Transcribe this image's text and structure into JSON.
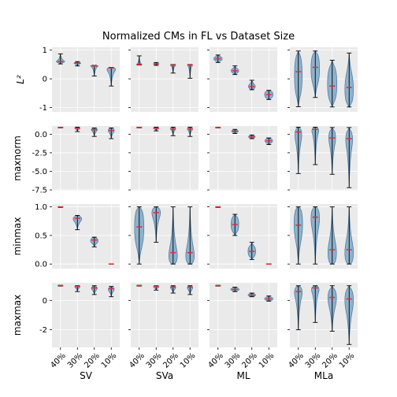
{
  "chart_data": {
    "type": "violin",
    "title": "Normalized CMs in FL vs Dataset Size",
    "columns": [
      "SV",
      "SVa",
      "ML",
      "MLa"
    ],
    "rows": [
      "L²",
      "maxnorm",
      "minmax",
      "maxmax"
    ],
    "categories": [
      "40%",
      "30%",
      "20%",
      "10%"
    ],
    "row_axes": [
      {
        "ylim": [
          -1.15,
          1.1
        ],
        "ticks": [
          1,
          0,
          -1
        ],
        "tick_labels": [
          "1",
          "0",
          "-1"
        ],
        "ylabel": "L²"
      },
      {
        "ylim": [
          -7.6,
          1.1
        ],
        "ticks": [
          0,
          -2.5,
          -5,
          -7.5
        ],
        "tick_labels": [
          "0.0",
          "-2.5",
          "-5.0",
          "-7.5"
        ],
        "ylabel": "maxnorm"
      },
      {
        "ylim": [
          -0.08,
          1.05
        ],
        "ticks": [
          1,
          0.5,
          0
        ],
        "tick_labels": [
          "1.0",
          "0.5",
          "0.0"
        ],
        "ylabel": "minmax"
      },
      {
        "ylim": [
          -3.2,
          1.2
        ],
        "ticks": [
          0,
          -2
        ],
        "tick_labels": [
          "0",
          "-2"
        ],
        "ylabel": "maxmax"
      }
    ],
    "panels": [
      [
        {
          "column": "SV",
          "violins": [
            {
              "median": 0.6,
              "min": 0.52,
              "max": 0.87,
              "lo": 0.57,
              "hi": 0.63,
              "width": 0.5
            },
            {
              "median": 0.55,
              "min": 0.45,
              "max": 0.6,
              "lo": 0.52,
              "hi": 0.57,
              "width": 0.4
            },
            {
              "median": 0.45,
              "min": 0.1,
              "max": 0.47,
              "lo": 0.43,
              "hi": 0.47,
              "width": 0.45
            },
            {
              "median": 0.38,
              "min": -0.25,
              "max": 0.4,
              "lo": 0.25,
              "hi": 0.4,
              "width": 0.5
            }
          ]
        },
        {
          "column": "SVa",
          "violins": [
            {
              "median": 0.5,
              "min": 0.48,
              "max": 0.8,
              "lo": 0.49,
              "hi": 0.51,
              "width": 0.3
            },
            {
              "median": 0.52,
              "min": 0.47,
              "max": 0.57,
              "lo": 0.5,
              "hi": 0.54,
              "width": 0.3
            },
            {
              "median": 0.48,
              "min": 0.2,
              "max": 0.5,
              "lo": 0.46,
              "hi": 0.5,
              "width": 0.3
            },
            {
              "median": 0.48,
              "min": 0.02,
              "max": 0.5,
              "lo": 0.46,
              "hi": 0.5,
              "width": 0.3
            }
          ]
        },
        {
          "column": "ML",
          "violins": [
            {
              "median": 0.7,
              "min": 0.57,
              "max": 0.83,
              "lo": 0.62,
              "hi": 0.78,
              "width": 0.5
            },
            {
              "median": 0.28,
              "min": 0.15,
              "max": 0.45,
              "lo": 0.2,
              "hi": 0.36,
              "width": 0.45
            },
            {
              "median": -0.27,
              "min": -0.38,
              "max": -0.05,
              "lo": -0.36,
              "hi": -0.18,
              "width": 0.4
            },
            {
              "median": -0.55,
              "min": -0.72,
              "max": -0.4,
              "lo": -0.68,
              "hi": -0.42,
              "width": 0.5
            }
          ]
        },
        {
          "column": "MLa",
          "violins": [
            {
              "median": 0.25,
              "min": -0.97,
              "max": 0.97,
              "lo": -0.6,
              "hi": 0.85,
              "width": 0.45
            },
            {
              "median": 0.4,
              "min": -0.65,
              "max": 0.97,
              "lo": -0.2,
              "hi": 0.9,
              "width": 0.5
            },
            {
              "median": -0.25,
              "min": -0.98,
              "max": 0.65,
              "lo": -0.8,
              "hi": 0.45,
              "width": 0.55
            },
            {
              "median": -0.3,
              "min": -0.98,
              "max": 0.9,
              "lo": -0.9,
              "hi": 0.2,
              "width": 0.5
            }
          ]
        }
      ],
      [
        {
          "column": "SV",
          "violins": [
            {
              "median": 0.9,
              "min": 0.85,
              "max": 0.95,
              "lo": 0.88,
              "hi": 0.93,
              "width": 0.3
            },
            {
              "median": 0.8,
              "min": 0.35,
              "max": 0.95,
              "lo": 0.7,
              "hi": 0.9,
              "width": 0.3
            },
            {
              "median": 0.6,
              "min": -0.3,
              "max": 0.85,
              "lo": 0.4,
              "hi": 0.8,
              "width": 0.35
            },
            {
              "median": 0.5,
              "min": -0.6,
              "max": 0.85,
              "lo": 0.2,
              "hi": 0.8,
              "width": 0.35
            }
          ]
        },
        {
          "column": "SVa",
          "violins": [
            {
              "median": 0.9,
              "min": 0.85,
              "max": 0.95,
              "lo": 0.88,
              "hi": 0.93,
              "width": 0.3
            },
            {
              "median": 0.8,
              "min": 0.45,
              "max": 0.95,
              "lo": 0.7,
              "hi": 0.9,
              "width": 0.3
            },
            {
              "median": 0.7,
              "min": -0.2,
              "max": 0.95,
              "lo": 0.55,
              "hi": 0.9,
              "width": 0.3
            },
            {
              "median": 0.7,
              "min": -0.3,
              "max": 0.95,
              "lo": 0.5,
              "hi": 0.9,
              "width": 0.3
            }
          ]
        },
        {
          "column": "ML",
          "violins": [
            {
              "median": 0.9,
              "min": 0.85,
              "max": 0.95,
              "lo": 0.88,
              "hi": 0.93,
              "width": 0.3
            },
            {
              "median": 0.4,
              "min": 0.1,
              "max": 0.65,
              "lo": 0.25,
              "hi": 0.55,
              "width": 0.4
            },
            {
              "median": -0.35,
              "min": -0.6,
              "max": -0.1,
              "lo": -0.5,
              "hi": -0.2,
              "width": 0.4
            },
            {
              "median": -0.9,
              "min": -1.4,
              "max": -0.5,
              "lo": -1.2,
              "hi": -0.6,
              "width": 0.45
            }
          ]
        },
        {
          "column": "MLa",
          "violins": [
            {
              "median": 0.3,
              "min": -5.3,
              "max": 0.95,
              "lo": -1.2,
              "hi": 0.9,
              "width": 0.4
            },
            {
              "median": 0.65,
              "min": -4.1,
              "max": 0.95,
              "lo": 0.0,
              "hi": 0.92,
              "width": 0.4
            },
            {
              "median": -0.5,
              "min": -5.4,
              "max": 0.9,
              "lo": -1.6,
              "hi": 0.6,
              "width": 0.4
            },
            {
              "median": -0.6,
              "min": -7.2,
              "max": 0.9,
              "lo": -2.0,
              "hi": 0.5,
              "width": 0.4
            }
          ]
        }
      ],
      [
        {
          "column": "SV",
          "violins": [
            {
              "median": 1.0,
              "min": 0.99,
              "max": 1.0,
              "lo": 0.99,
              "hi": 1.0,
              "width": 0.3
            },
            {
              "median": 0.8,
              "min": 0.6,
              "max": 0.85,
              "lo": 0.74,
              "hi": 0.84,
              "width": 0.5
            },
            {
              "median": 0.42,
              "min": 0.3,
              "max": 0.47,
              "lo": 0.36,
              "hi": 0.46,
              "width": 0.45
            },
            {
              "median": 0.0,
              "min": 0.0,
              "max": 0.0,
              "lo": 0.0,
              "hi": 0.0,
              "width": 0.2
            }
          ]
        },
        {
          "column": "SVa",
          "violins": [
            {
              "median": 0.65,
              "min": 0.0,
              "max": 1.0,
              "lo": 0.3,
              "hi": 0.98,
              "width": 0.55
            },
            {
              "median": 0.9,
              "min": 0.38,
              "max": 1.0,
              "lo": 0.8,
              "hi": 0.99,
              "width": 0.5
            },
            {
              "median": 0.2,
              "min": 0.0,
              "max": 1.0,
              "lo": 0.0,
              "hi": 0.3,
              "width": 0.5
            },
            {
              "median": 0.2,
              "min": 0.0,
              "max": 1.0,
              "lo": 0.0,
              "hi": 0.3,
              "width": 0.5
            }
          ]
        },
        {
          "column": "ML",
          "violins": [
            {
              "median": 1.0,
              "min": 0.99,
              "max": 1.0,
              "lo": 0.99,
              "hi": 1.0,
              "width": 0.3
            },
            {
              "median": 0.69,
              "min": 0.5,
              "max": 0.87,
              "lo": 0.55,
              "hi": 0.84,
              "width": 0.45
            },
            {
              "median": 0.22,
              "min": 0.08,
              "max": 0.38,
              "lo": 0.12,
              "hi": 0.32,
              "width": 0.45
            },
            {
              "median": 0.0,
              "min": 0.0,
              "max": 0.0,
              "lo": 0.0,
              "hi": 0.0,
              "width": 0.2
            }
          ]
        },
        {
          "column": "MLa",
          "violins": [
            {
              "median": 0.68,
              "min": 0.0,
              "max": 1.0,
              "lo": 0.4,
              "hi": 0.99,
              "width": 0.5
            },
            {
              "median": 0.82,
              "min": 0.0,
              "max": 1.0,
              "lo": 0.6,
              "hi": 0.99,
              "width": 0.5
            },
            {
              "median": 0.25,
              "min": 0.0,
              "max": 1.0,
              "lo": 0.0,
              "hi": 0.4,
              "width": 0.5
            },
            {
              "median": 0.25,
              "min": 0.0,
              "max": 1.0,
              "lo": 0.0,
              "hi": 0.4,
              "width": 0.5
            }
          ]
        }
      ],
      [
        {
          "column": "SV",
          "violins": [
            {
              "median": 1.0,
              "min": 0.97,
              "max": 1.03,
              "lo": 0.98,
              "hi": 1.02,
              "width": 0.3
            },
            {
              "median": 0.95,
              "min": 0.6,
              "max": 1.0,
              "lo": 0.85,
              "hi": 1.0,
              "width": 0.3
            },
            {
              "median": 0.85,
              "min": 0.4,
              "max": 1.0,
              "lo": 0.7,
              "hi": 0.95,
              "width": 0.35
            },
            {
              "median": 0.8,
              "min": 0.25,
              "max": 0.95,
              "lo": 0.6,
              "hi": 0.9,
              "width": 0.35
            }
          ]
        },
        {
          "column": "SVa",
          "violins": [
            {
              "median": 1.0,
              "min": 0.97,
              "max": 1.03,
              "lo": 0.98,
              "hi": 1.02,
              "width": 0.3
            },
            {
              "median": 0.95,
              "min": 0.7,
              "max": 1.0,
              "lo": 0.85,
              "hi": 1.0,
              "width": 0.3
            },
            {
              "median": 0.9,
              "min": 0.5,
              "max": 1.0,
              "lo": 0.75,
              "hi": 1.0,
              "width": 0.3
            },
            {
              "median": 0.9,
              "min": 0.4,
              "max": 1.0,
              "lo": 0.7,
              "hi": 1.0,
              "width": 0.3
            }
          ]
        },
        {
          "column": "ML",
          "violins": [
            {
              "median": 1.0,
              "min": 0.97,
              "max": 1.03,
              "lo": 0.98,
              "hi": 1.02,
              "width": 0.3
            },
            {
              "median": 0.75,
              "min": 0.6,
              "max": 0.9,
              "lo": 0.65,
              "hi": 0.85,
              "width": 0.5
            },
            {
              "median": 0.35,
              "min": 0.25,
              "max": 0.5,
              "lo": 0.28,
              "hi": 0.45,
              "width": 0.45
            },
            {
              "median": 0.1,
              "min": -0.05,
              "max": 0.3,
              "lo": 0.0,
              "hi": 0.22,
              "width": 0.5
            }
          ]
        },
        {
          "column": "MLa",
          "violins": [
            {
              "median": 0.6,
              "min": -2.0,
              "max": 1.0,
              "lo": 0.1,
              "hi": 0.95,
              "width": 0.45
            },
            {
              "median": 0.85,
              "min": -1.5,
              "max": 1.0,
              "lo": 0.5,
              "hi": 0.98,
              "width": 0.45
            },
            {
              "median": 0.2,
              "min": -2.1,
              "max": 1.0,
              "lo": -0.5,
              "hi": 0.8,
              "width": 0.5
            },
            {
              "median": 0.1,
              "min": -3.0,
              "max": 1.0,
              "lo": -0.8,
              "hi": 0.8,
              "width": 0.5
            }
          ]
        }
      ]
    ],
    "colors": {
      "violin": "#7ea8c7",
      "violin_edge": "#4f7fa6",
      "median": "#e0303d",
      "panel_bg": "#eaeaea",
      "grid": "#ffffff"
    },
    "grid": true
  }
}
